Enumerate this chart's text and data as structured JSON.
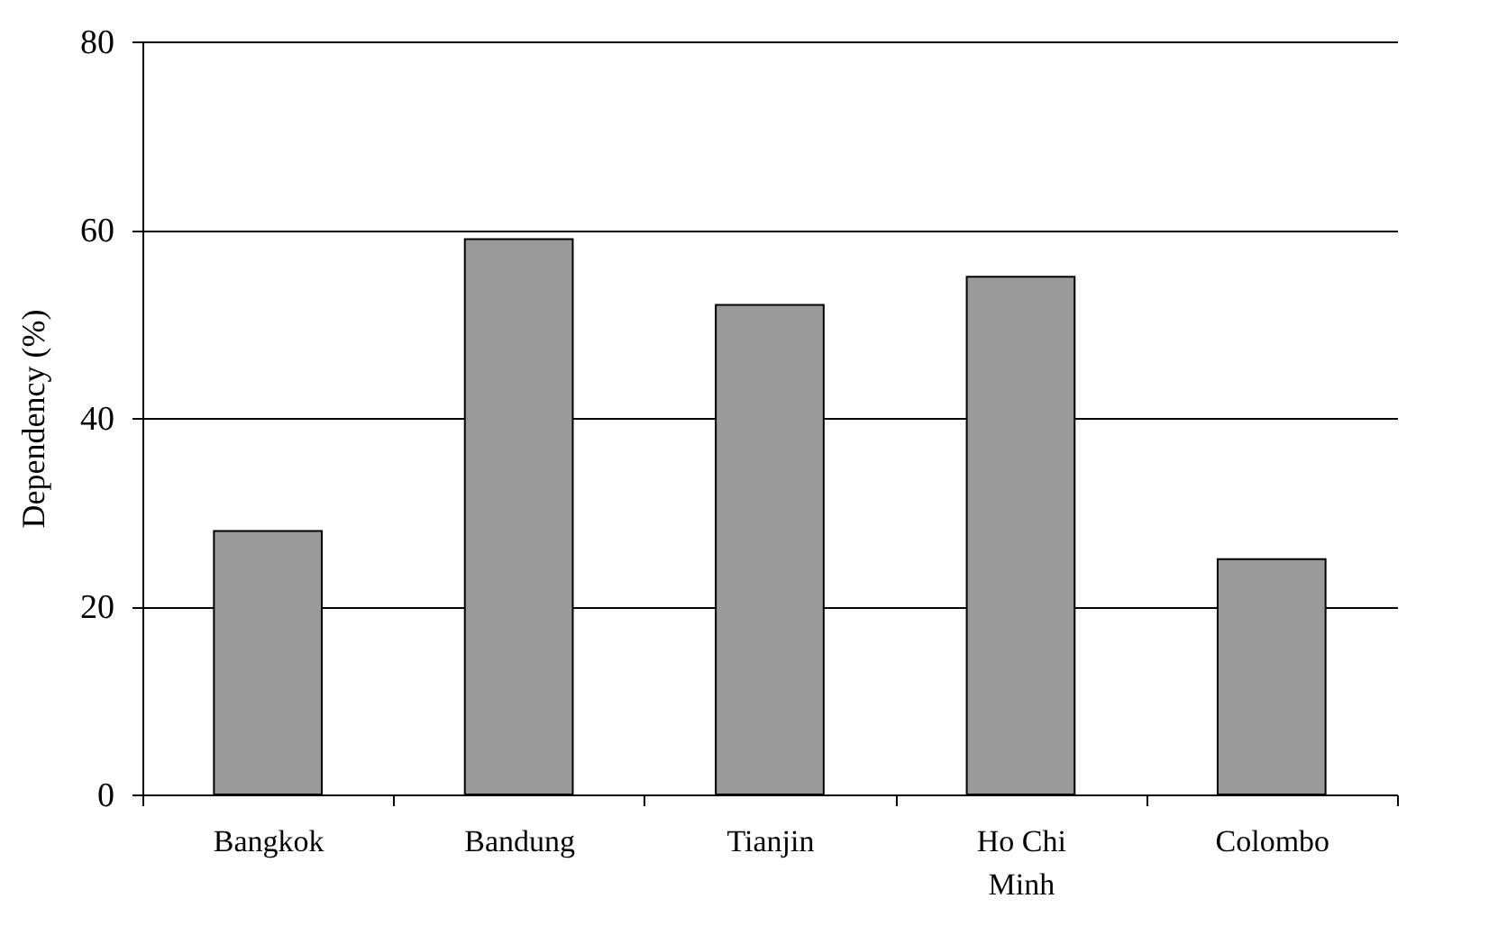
{
  "chart_data": {
    "type": "bar",
    "ylabel": "Dependency (%)",
    "categories": [
      "Bangkok",
      "Bandung",
      "Tianjin",
      "Ho Chi Minh",
      "Colombo"
    ],
    "values": [
      28,
      59,
      52,
      55,
      25
    ],
    "color": "#9a9a9a",
    "ylim": [
      0,
      80
    ],
    "yticks": [
      0,
      20,
      40,
      60,
      80
    ],
    "grid": "y"
  }
}
